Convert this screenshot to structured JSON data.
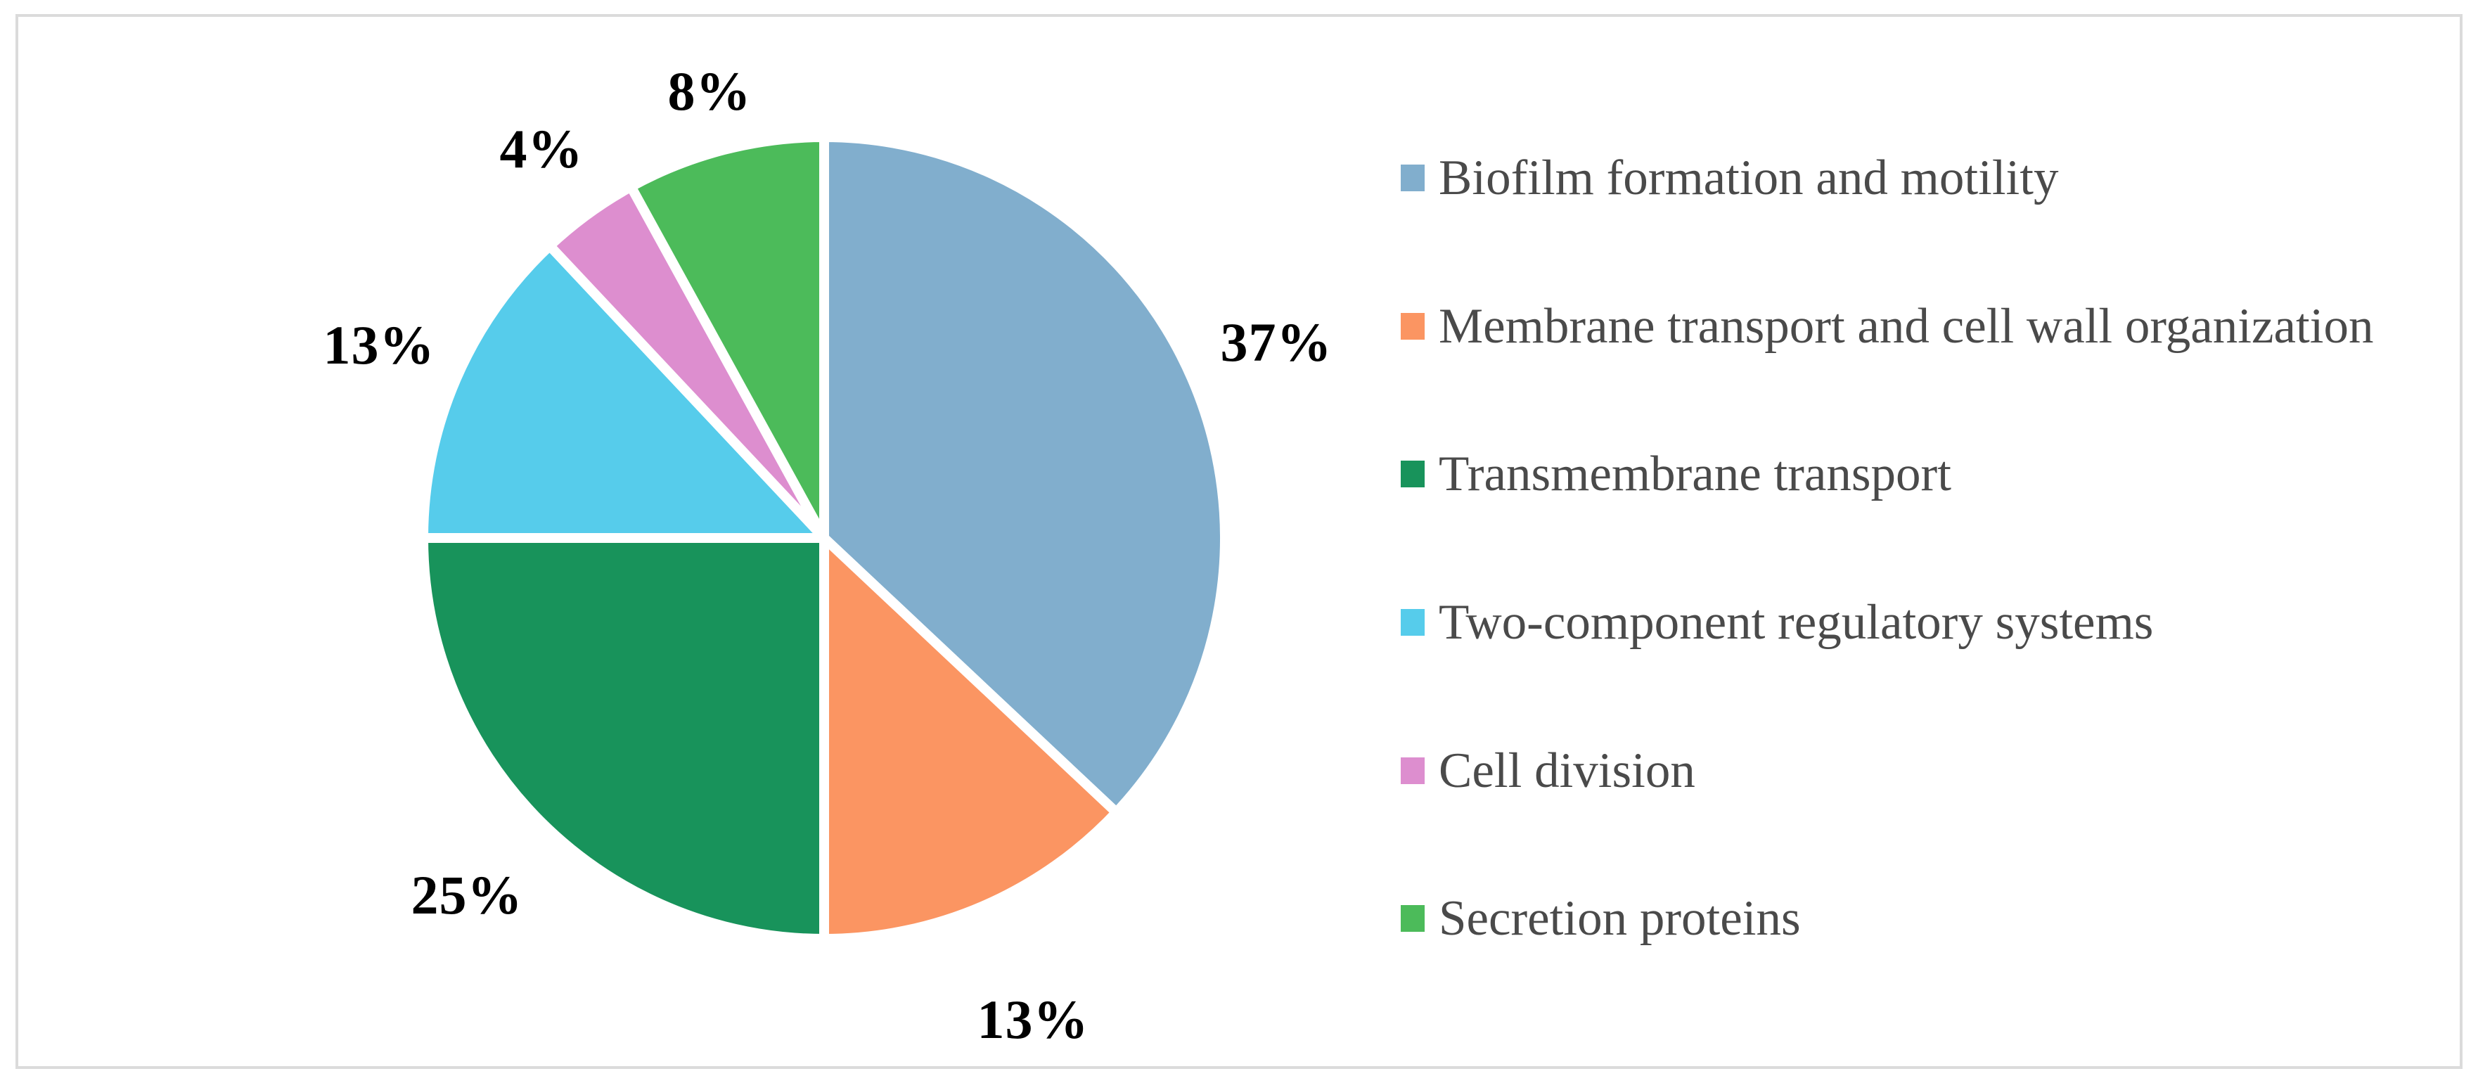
{
  "figure": {
    "background_color": "#FFFFFF",
    "frame_border_color": "#DBDBDB",
    "percent_label_color": "#000000",
    "legend_text_color": "#4A4A4A",
    "slice_divider_color": "#FFFFFF"
  },
  "chart_data": {
    "type": "pie",
    "title": "",
    "start_angle_deg": 0,
    "direction": "clockwise",
    "legend_position": "right",
    "total_percent": 100,
    "slices": [
      {
        "label": "Biofilm formation and motility",
        "value": 37,
        "percent_label": "37%",
        "color": "#81AECD"
      },
      {
        "label": "Membrane transport and cell wall organization",
        "value": 13,
        "percent_label": "13%",
        "color": "#FB9562"
      },
      {
        "label": "Transmembrane transport",
        "value": 25,
        "percent_label": "25%",
        "color": "#18935B"
      },
      {
        "label": "Two-component regulatory systems",
        "value": 13,
        "percent_label": "13%",
        "color": "#56CCEB"
      },
      {
        "label": "Cell division",
        "value": 4,
        "percent_label": "4%",
        "color": "#DD8ECF"
      },
      {
        "label": "Secretion proteins",
        "value": 8,
        "percent_label": "8%",
        "color": "#4CBB5A"
      }
    ]
  }
}
